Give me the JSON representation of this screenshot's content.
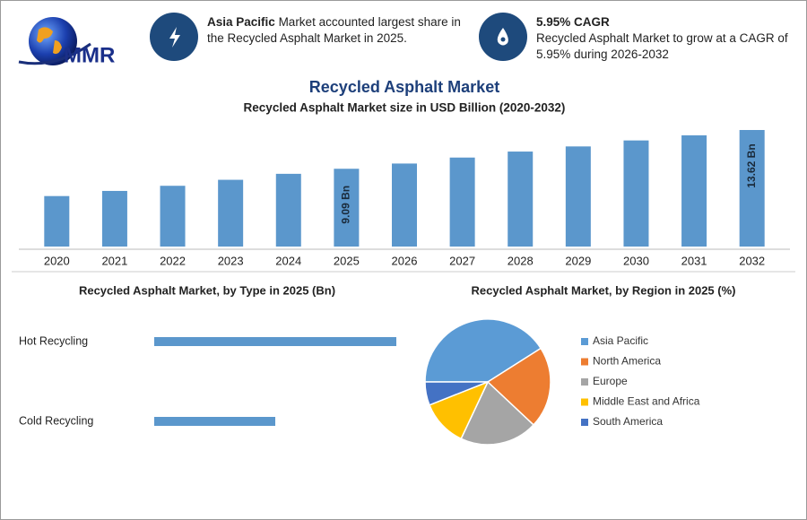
{
  "header": {
    "logo_text": "MMR",
    "cards": [
      {
        "bold": "Asia Pacific",
        "text": "Market accounted largest share in the Recycled Asphalt Market in 2025."
      },
      {
        "bold": "5.95% CAGR",
        "text": "Recycled Asphalt Market to grow at a CAGR of 5.95% during 2026-2032"
      }
    ]
  },
  "chart_data": [
    {
      "type": "bar",
      "title": "Recycled Asphalt Market",
      "subtitle": "Recycled Asphalt Market size in USD Billion (2020-2032)",
      "categories": [
        "2020",
        "2021",
        "2022",
        "2023",
        "2024",
        "2025",
        "2026",
        "2027",
        "2028",
        "2029",
        "2030",
        "2031",
        "2032"
      ],
      "values": [
        5.9,
        6.5,
        7.1,
        7.8,
        8.5,
        9.09,
        9.7,
        10.4,
        11.1,
        11.7,
        12.4,
        13.0,
        13.62
      ],
      "value_labels": [
        null,
        null,
        null,
        null,
        null,
        "9.09 Bn",
        null,
        null,
        null,
        null,
        null,
        null,
        "13.62 Bn"
      ],
      "color": "#5b97cc"
    },
    {
      "type": "bar",
      "horizontal": true,
      "title": "Recycled Asphalt Market, by Type in 2025 (Bn)",
      "categories": [
        "Hot Recycling",
        "Cold Recycling"
      ],
      "values": [
        6.06,
        3.03
      ],
      "color": "#5b97cc"
    },
    {
      "type": "pie",
      "title": "Recycled Asphalt Market, by Region in 2025 (%)",
      "legend": "right",
      "series": [
        {
          "name": "Asia Pacific",
          "color": "#5b9bd5",
          "value": 41
        },
        {
          "name": "North America",
          "color": "#ed7d31",
          "value": 21
        },
        {
          "name": "Europe",
          "color": "#a5a5a5",
          "value": 20
        },
        {
          "name": "Middle East and Africa",
          "color": "#ffc000",
          "value": 12
        },
        {
          "name": "South America",
          "color": "#4472c4",
          "value": 6
        }
      ]
    }
  ]
}
